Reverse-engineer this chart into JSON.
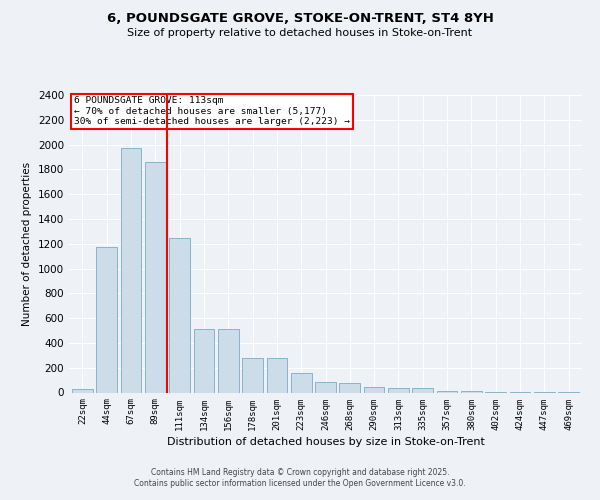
{
  "title": "6, POUNDSGATE GROVE, STOKE-ON-TRENT, ST4 8YH",
  "subtitle": "Size of property relative to detached houses in Stoke-on-Trent",
  "xlabel": "Distribution of detached houses by size in Stoke-on-Trent",
  "ylabel": "Number of detached properties",
  "categories": [
    "22sqm",
    "44sqm",
    "67sqm",
    "89sqm",
    "111sqm",
    "134sqm",
    "156sqm",
    "178sqm",
    "201sqm",
    "223sqm",
    "246sqm",
    "268sqm",
    "290sqm",
    "313sqm",
    "335sqm",
    "357sqm",
    "380sqm",
    "402sqm",
    "424sqm",
    "447sqm",
    "469sqm"
  ],
  "values": [
    25,
    1175,
    1975,
    1860,
    1250,
    515,
    515,
    275,
    275,
    155,
    85,
    75,
    45,
    35,
    35,
    10,
    10,
    5,
    5,
    5,
    5
  ],
  "bar_color": "#ccdce8",
  "bar_edge_color": "#7aaac8",
  "red_line_x": 3.5,
  "annotation_text": "6 POUNDSGATE GROVE: 113sqm\n← 70% of detached houses are smaller (5,177)\n30% of semi-detached houses are larger (2,223) →",
  "ylim": [
    0,
    2400
  ],
  "yticks": [
    0,
    200,
    400,
    600,
    800,
    1000,
    1200,
    1400,
    1600,
    1800,
    2000,
    2200,
    2400
  ],
  "background_color": "#eef2f7",
  "plot_bg_color": "#eef2f7",
  "grid_color": "#ffffff",
  "footer_line1": "Contains HM Land Registry data © Crown copyright and database right 2025.",
  "footer_line2": "Contains public sector information licensed under the Open Government Licence v3.0."
}
